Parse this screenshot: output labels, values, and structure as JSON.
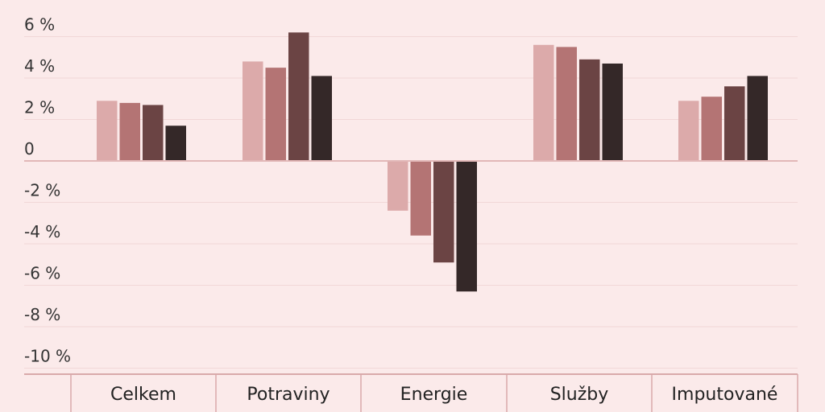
{
  "colors": {
    "background": "#fbeaea",
    "grid": "#f1d7d7",
    "zero_line": "#e2b7b7",
    "table_border": "#d9a9aa",
    "series": [
      "#dcaaaa",
      "#b47474",
      "#6b4444",
      "#342828"
    ]
  },
  "chart_data": {
    "type": "bar",
    "categories": [
      "Celkem",
      "Potraviny",
      "Energie",
      "Služby",
      "Imputované"
    ],
    "series": [
      {
        "values": [
          2.9,
          4.8,
          -2.4,
          5.6,
          2.9
        ]
      },
      {
        "values": [
          2.8,
          4.5,
          -3.6,
          5.5,
          3.1
        ]
      },
      {
        "values": [
          2.7,
          6.2,
          -4.9,
          4.9,
          3.6
        ]
      },
      {
        "values": [
          1.7,
          4.1,
          -6.3,
          4.7,
          4.1
        ]
      }
    ],
    "yticks": [
      "6 %",
      "4 %",
      "2 %",
      "0",
      "-2 %",
      "-4 %",
      "-6 %",
      "-8 %",
      "-10 %"
    ],
    "ytick_values": [
      6,
      4,
      2,
      0,
      -2,
      -4,
      -6,
      -8,
      -10
    ],
    "ylim": [
      -10,
      6
    ],
    "grid": true,
    "legend": "none"
  }
}
